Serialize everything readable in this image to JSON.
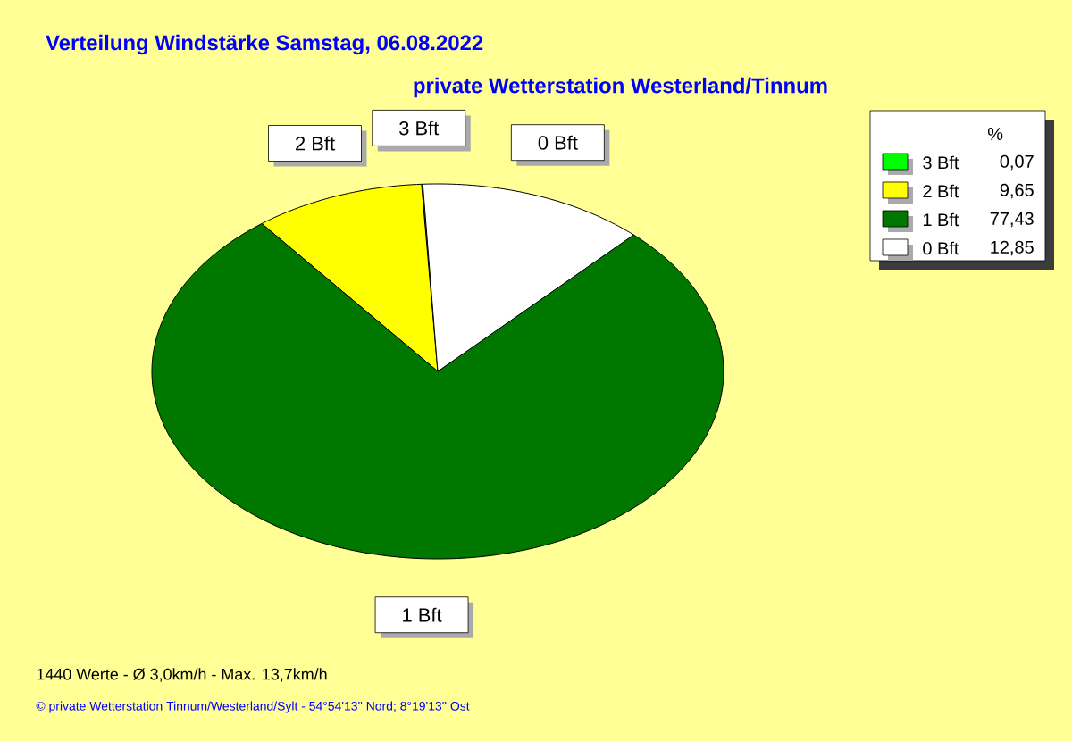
{
  "chart_data": {
    "type": "pie",
    "title": "Verteilung Windstärke  Samstag, 06.08.2022",
    "subtitle": "private Wetterstation Westerland/Tinnum",
    "categories": [
      "3 Bft",
      "2 Bft",
      "1 Bft",
      "0 Bft"
    ],
    "values": [
      0.07,
      9.65,
      77.43,
      12.85
    ],
    "colors": [
      "#00ff00",
      "#ffff00",
      "#007800",
      "#ffffff"
    ],
    "value_labels": [
      "0,07",
      "9,65",
      "77,43",
      "12,85"
    ],
    "legend": "top right",
    "legend_title": "%",
    "annotations": [
      "1440 Werte   -  Ø 3,0km/h  -  Max. 13,7km/h",
      "© private Wetterstation Tinnum/Westerland/Sylt  -  54°54'13'' Nord; 8°19'13'' Ost"
    ]
  }
}
